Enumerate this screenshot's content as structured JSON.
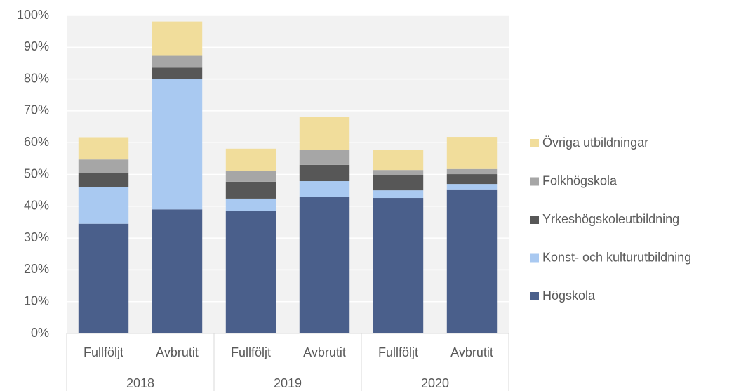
{
  "chart_data": {
    "type": "stacked_bar",
    "categories": [
      "Fullföljt",
      "Avbrutit",
      "Fullföljt",
      "Avbrutit",
      "Fullföljt",
      "Avbrutit"
    ],
    "groups": [
      "2018",
      "2019",
      "2020"
    ],
    "series": [
      {
        "name": "Högskola",
        "color": "#4a5f8b",
        "values": [
          34.5,
          39,
          38.6,
          43,
          42.6,
          45.3
        ]
      },
      {
        "name": "Konst- och kulturutbildning",
        "color": "#a9c9f1",
        "values": [
          11.5,
          41,
          3.8,
          4.9,
          2.4,
          1.7
        ]
      },
      {
        "name": "Yrkeshögskoleutbildning",
        "color": "#575757",
        "values": [
          4.5,
          3.6,
          5.3,
          5.1,
          4.7,
          3.1
        ]
      },
      {
        "name": "Folkhögskola",
        "color": "#a6a6a6",
        "values": [
          4.2,
          3.7,
          3.3,
          4.8,
          1.7,
          1.6
        ]
      },
      {
        "name": "Övriga utbildningar",
        "color": "#f1dd9b",
        "values": [
          7,
          10.8,
          7.1,
          10.4,
          6.4,
          10.1
        ]
      }
    ],
    "ylim": [
      0,
      100
    ],
    "yticks": [
      {
        "value": 0,
        "label": "0%"
      },
      {
        "value": 10,
        "label": "10%"
      },
      {
        "value": 20,
        "label": "20%"
      },
      {
        "value": 30,
        "label": "30%"
      },
      {
        "value": 40,
        "label": "40%"
      },
      {
        "value": 50,
        "label": "50%"
      },
      {
        "value": 60,
        "label": "60%"
      },
      {
        "value": 70,
        "label": "70%"
      },
      {
        "value": 80,
        "label": "80%"
      },
      {
        "value": 90,
        "label": "90%"
      },
      {
        "value": 100,
        "label": "100%"
      }
    ],
    "grid": true,
    "legend": "right"
  }
}
